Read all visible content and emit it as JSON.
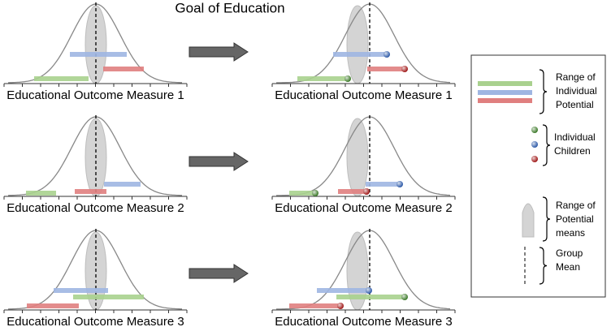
{
  "title": "Goal of Education",
  "before": {
    "panels": [
      {
        "label": "Educational Outcome Measure 1"
      },
      {
        "label": "Educational Outcome Measure 2"
      },
      {
        "label": "Educational Outcome Measure 3"
      }
    ]
  },
  "after": {
    "panels": [
      {
        "label": "Educational Outcome Measure 1"
      },
      {
        "label": "Educational Outcome Measure 2"
      },
      {
        "label": "Educational Outcome Measure 3"
      }
    ]
  },
  "legend": {
    "items": [
      {
        "lines": [
          "Range of",
          "Individual",
          "Potential"
        ]
      },
      {
        "lines": [
          "Individual",
          "Children"
        ]
      },
      {
        "lines": [
          "Range of",
          "Potential",
          "means"
        ]
      },
      {
        "lines": [
          "Group",
          "Mean"
        ]
      }
    ]
  }
}
